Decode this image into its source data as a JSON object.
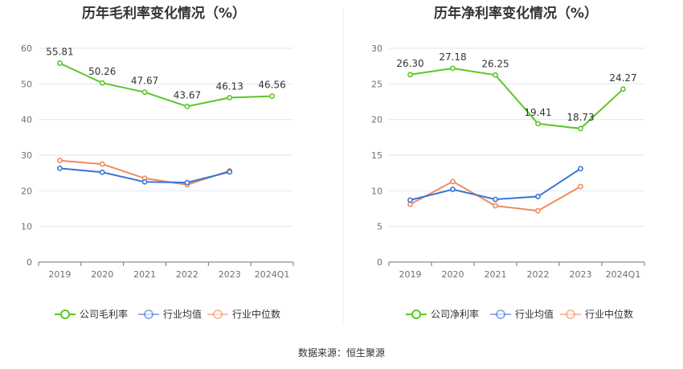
{
  "chart_data": [
    {
      "type": "line",
      "title": "历年毛利率变化情况（%）",
      "categories": [
        "2019",
        "2020",
        "2021",
        "2022",
        "2023",
        "2024Q1"
      ],
      "ylim": [
        0,
        60
      ],
      "yticks": [
        0,
        10,
        20,
        30,
        40,
        50,
        60
      ],
      "grid": true,
      "legend_position": "bottom",
      "series": [
        {
          "name": "公司毛利率",
          "color": "#5ac727",
          "values": [
            55.81,
            50.26,
            47.67,
            43.67,
            46.13,
            46.56
          ],
          "labels": [
            "55.81",
            "50.26",
            "47.67",
            "43.67",
            "46.13",
            "46.56"
          ]
        },
        {
          "name": "行业均值",
          "color": "#3a73d9",
          "values": [
            26.3,
            25.2,
            22.5,
            22.3,
            25.3,
            null
          ]
        },
        {
          "name": "行业中位数",
          "color": "#ef8a5e",
          "values": [
            28.5,
            27.5,
            23.5,
            21.7,
            25.6,
            null
          ]
        }
      ]
    },
    {
      "type": "line",
      "title": "历年净利率变化情况（%）",
      "categories": [
        "2019",
        "2020",
        "2021",
        "2022",
        "2023",
        "2024Q1"
      ],
      "ylim": [
        0,
        30
      ],
      "yticks": [
        0,
        5,
        10,
        15,
        20,
        25,
        30
      ],
      "grid": true,
      "legend_position": "bottom",
      "series": [
        {
          "name": "公司净利率",
          "color": "#5ac727",
          "values": [
            26.3,
            27.18,
            26.25,
            19.41,
            18.73,
            24.27
          ],
          "labels": [
            "26.30",
            "27.18",
            "26.25",
            "19.41",
            "18.73",
            "24.27"
          ]
        },
        {
          "name": "行业均值",
          "color": "#3a73d9",
          "values": [
            8.7,
            10.2,
            8.8,
            9.2,
            13.1,
            null
          ]
        },
        {
          "name": "行业中位数",
          "color": "#ef8a5e",
          "values": [
            8.1,
            11.3,
            7.9,
            7.2,
            10.6,
            null
          ]
        }
      ]
    }
  ],
  "source_text": "数据来源：恒生聚源"
}
